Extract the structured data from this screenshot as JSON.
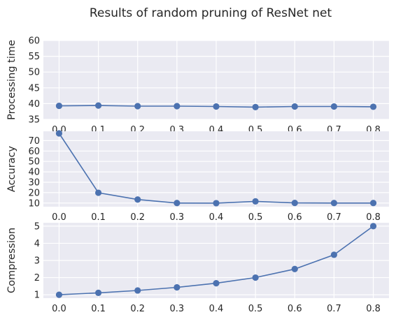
{
  "title": "Results of random pruning of ResNet net",
  "colors": {
    "background": "#eaeaf2",
    "grid": "#ffffff",
    "series": "#4c72b0",
    "text": "#262626"
  },
  "chart_data": [
    {
      "type": "line",
      "x": [
        0.0,
        0.1,
        0.2,
        0.3,
        0.4,
        0.5,
        0.6,
        0.7,
        0.8
      ],
      "x_tick_labels": [
        "0.0",
        "0.1",
        "0.2",
        "0.3",
        "0.4",
        "0.5",
        "0.6",
        "0.7",
        "0.8"
      ],
      "values": [
        39.3,
        39.4,
        39.2,
        39.2,
        39.1,
        38.9,
        39.1,
        39.1,
        39.0
      ],
      "ylabel": "Processing time",
      "ylim": [
        35,
        60
      ],
      "yticks": [
        35,
        40,
        45,
        50,
        55,
        60
      ],
      "grid": true,
      "marker": "circle"
    },
    {
      "type": "line",
      "x": [
        0.0,
        0.1,
        0.2,
        0.3,
        0.4,
        0.5,
        0.6,
        0.7,
        0.8
      ],
      "x_tick_labels": [
        "0.0",
        "0.1",
        "0.2",
        "0.3",
        "0.4",
        "0.5",
        "0.6",
        "0.7",
        "0.8"
      ],
      "values": [
        77.0,
        19.9,
        13.4,
        10.0,
        9.9,
        11.6,
        10.1,
        10.0,
        10.0
      ],
      "ylabel": "Accuracy",
      "ylim": [
        6.5,
        79
      ],
      "yticks": [
        10,
        20,
        30,
        40,
        50,
        60,
        70
      ],
      "grid": true,
      "marker": "circle"
    },
    {
      "type": "line",
      "x": [
        0.0,
        0.1,
        0.2,
        0.3,
        0.4,
        0.5,
        0.6,
        0.7,
        0.8
      ],
      "x_tick_labels": [
        "0.0",
        "0.1",
        "0.2",
        "0.3",
        "0.4",
        "0.5",
        "0.6",
        "0.7",
        "0.8"
      ],
      "values": [
        1.0,
        1.11,
        1.25,
        1.43,
        1.67,
        2.0,
        2.5,
        3.33,
        5.0
      ],
      "ylabel": "Compression",
      "ylim": [
        0.8,
        5.2
      ],
      "yticks": [
        1,
        2,
        3,
        4,
        5
      ],
      "grid": true,
      "marker": "circle"
    }
  ]
}
